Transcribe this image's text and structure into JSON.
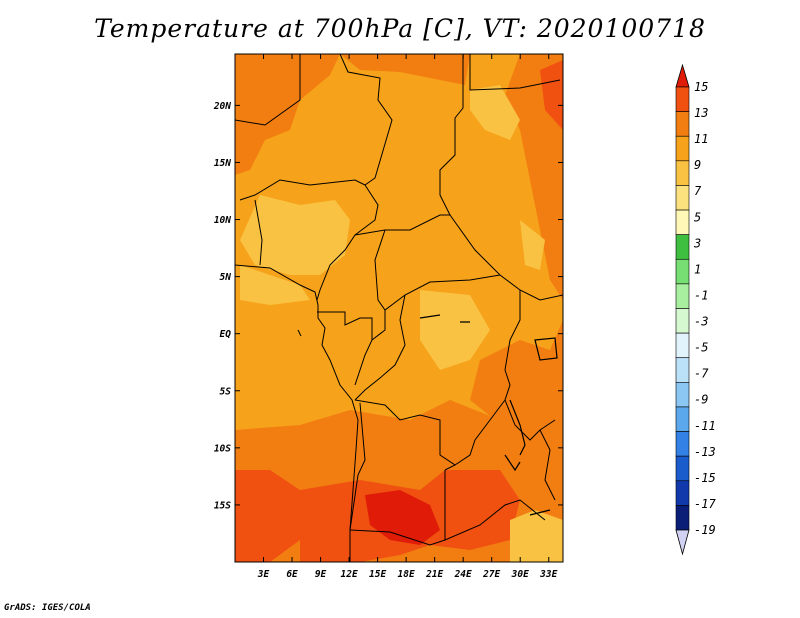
{
  "title": "Temperature at 700hPa [C], VT: 2020100718",
  "credit": "GrADS: IGES/COLA",
  "map": {
    "region": "Central Africa",
    "lon_range": [
      0,
      34.5
    ],
    "lat_range": [
      -20,
      24.5
    ],
    "x_ticks": [
      "3E",
      "6E",
      "9E",
      "12E",
      "15E",
      "18E",
      "21E",
      "24E",
      "27E",
      "30E",
      "33E"
    ],
    "y_ticks": [
      "20N",
      "15N",
      "10N",
      "5N",
      "EQ",
      "5S",
      "10S",
      "15S"
    ]
  },
  "colorbar": {
    "labels": [
      "15",
      "13",
      "11",
      "9",
      "7",
      "5",
      "3",
      "1",
      "-1",
      "-3",
      "-5",
      "-7",
      "-9",
      "-11",
      "-13",
      "-15",
      "-17",
      "-19"
    ],
    "colors": [
      "#e01c08",
      "#f05010",
      "#f27e12",
      "#f6a21a",
      "#f9c242",
      "#fce27e",
      "#fff8b6",
      "#3fbf3f",
      "#76de72",
      "#a8f09f",
      "#d6f8d0",
      "#e2f4fb",
      "#bbe1f9",
      "#8cc7f4",
      "#5ca8ec",
      "#3381e4",
      "#1b5ccd",
      "#1139ab",
      "#0a1e78",
      "#05085a"
    ],
    "over_color": "#e01c08",
    "under_color": "#d2d2f2"
  }
}
